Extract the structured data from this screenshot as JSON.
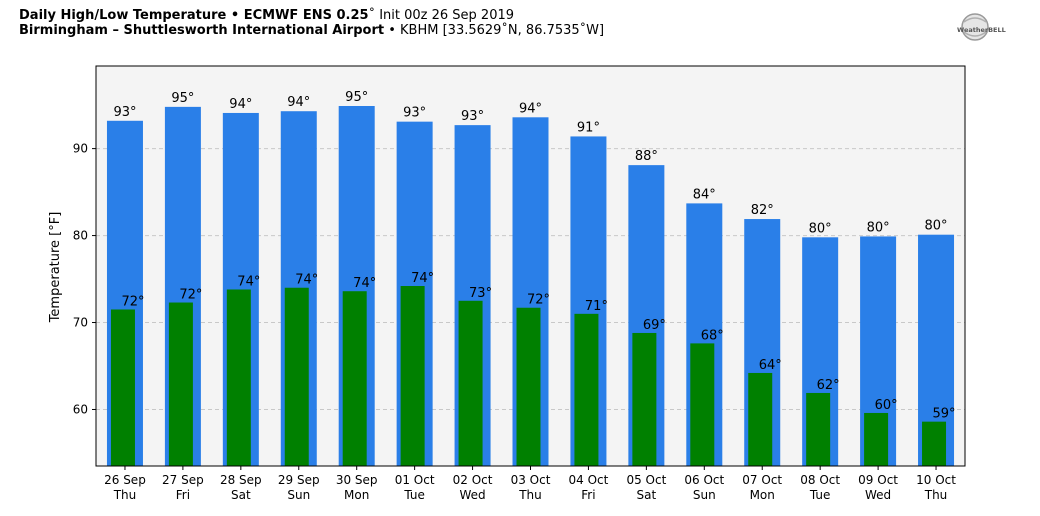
{
  "header": {
    "title_main": "Daily High/Low Temperature • ECMWF ENS 0.25",
    "title_deg": "˚",
    "title_init": " Init 00z 26 Sep 2019",
    "location_name": "Birmingham – Shuttlesworth International Airport",
    "location_sep": " • ",
    "location_coords": "KBHM [33.5629˚N, 86.7535˚W]"
  },
  "logo": {
    "text": "WeatherBELL"
  },
  "colors": {
    "high": "#2a7fe8",
    "low": "#008000",
    "plot_bg": "#f4f4f4",
    "grid": "#c8c8c8"
  },
  "chart_data": {
    "type": "bar",
    "ylabel": "Temperature [°F]",
    "ylim": [
      53.5,
      99.5
    ],
    "yticks": [
      60,
      70,
      80,
      90
    ],
    "grid": true,
    "categories": [
      {
        "date": "26 Sep",
        "day": "Thu"
      },
      {
        "date": "27 Sep",
        "day": "Fri"
      },
      {
        "date": "28 Sep",
        "day": "Sat"
      },
      {
        "date": "29 Sep",
        "day": "Sun"
      },
      {
        "date": "30 Sep",
        "day": "Mon"
      },
      {
        "date": "01 Oct",
        "day": "Tue"
      },
      {
        "date": "02 Oct",
        "day": "Wed"
      },
      {
        "date": "03 Oct",
        "day": "Thu"
      },
      {
        "date": "04 Oct",
        "day": "Fri"
      },
      {
        "date": "05 Oct",
        "day": "Sat"
      },
      {
        "date": "06 Oct",
        "day": "Sun"
      },
      {
        "date": "07 Oct",
        "day": "Mon"
      },
      {
        "date": "08 Oct",
        "day": "Tue"
      },
      {
        "date": "09 Oct",
        "day": "Wed"
      },
      {
        "date": "10 Oct",
        "day": "Thu"
      }
    ],
    "series": [
      {
        "key": "high",
        "values": [
          93.2,
          94.8,
          94.1,
          94.3,
          94.9,
          93.1,
          92.7,
          93.6,
          91.4,
          88.1,
          83.7,
          81.9,
          79.8,
          79.9,
          80.1
        ],
        "labels": [
          "93°",
          "95°",
          "94°",
          "94°",
          "95°",
          "93°",
          "93°",
          "94°",
          "91°",
          "88°",
          "84°",
          "82°",
          "80°",
          "80°",
          "80°"
        ]
      },
      {
        "key": "low",
        "values": [
          71.5,
          72.3,
          73.8,
          74.0,
          73.6,
          74.2,
          72.5,
          71.7,
          71.0,
          68.8,
          67.6,
          64.2,
          61.9,
          59.6,
          58.6
        ],
        "labels": [
          "72°",
          "72°",
          "74°",
          "74°",
          "74°",
          "74°",
          "73°",
          "72°",
          "71°",
          "69°",
          "68°",
          "64°",
          "62°",
          "60°",
          "59°"
        ]
      }
    ]
  }
}
